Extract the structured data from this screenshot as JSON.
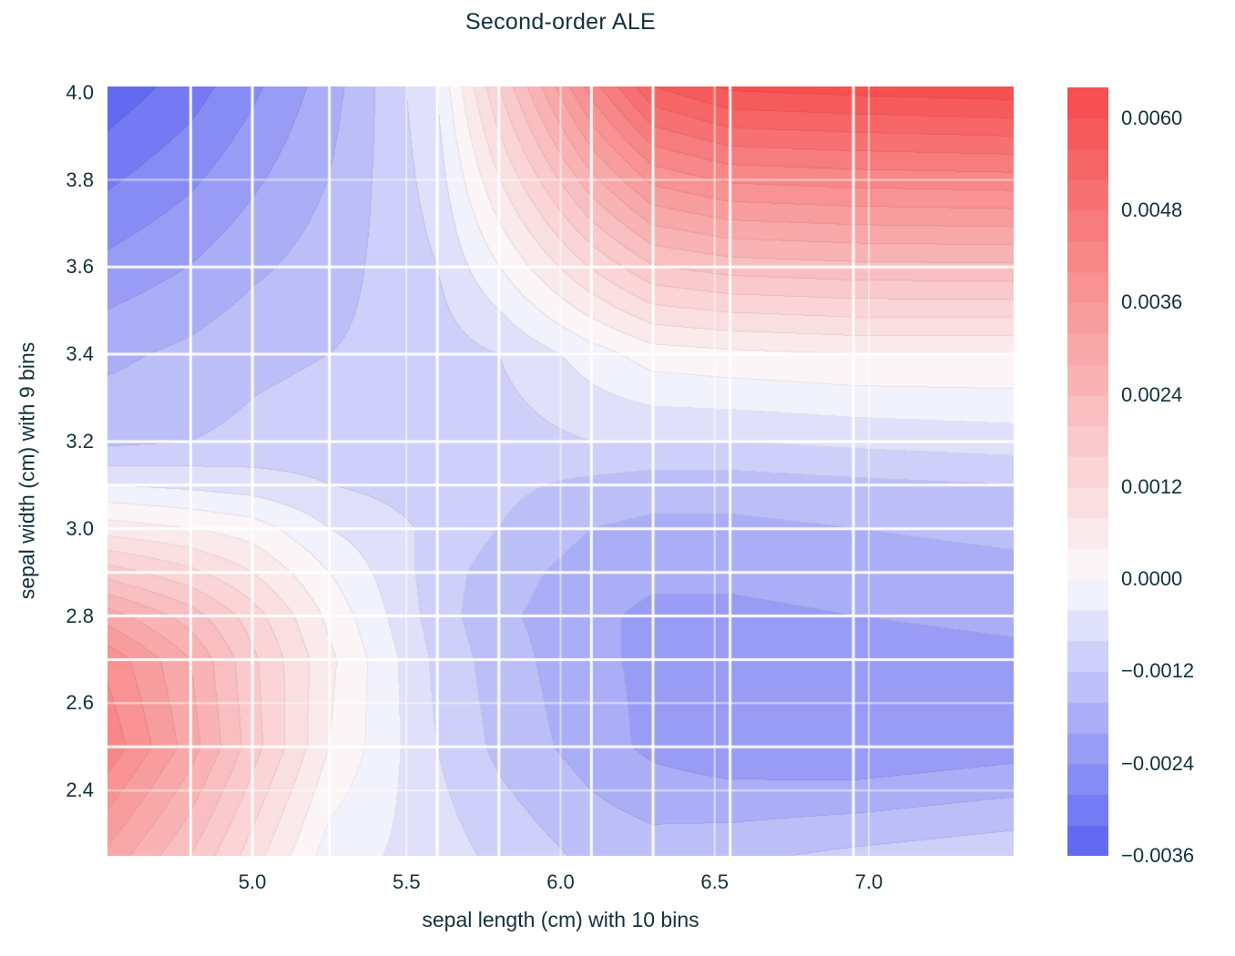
{
  "title": "Second-order ALE",
  "chart_data": {
    "type": "heatmap",
    "style": "filled-contour (second-order ALE surface, blue-white-red diverging colormap)",
    "title": "Second-order ALE",
    "xlabel": "sepal length (cm) with 10 bins",
    "ylabel": "sepal width (cm) with 9 bins",
    "xlim": [
      4.53,
      7.47
    ],
    "ylim": [
      2.25,
      4.014
    ],
    "x_ticks": {
      "labels": [
        "5.0",
        "5.5",
        "6.0",
        "6.5",
        "7.0"
      ],
      "values": [
        5.0,
        5.5,
        6.0,
        6.5,
        7.0
      ]
    },
    "y_ticks": {
      "labels": [
        "4.0",
        "3.8",
        "3.6",
        "3.4",
        "3.2",
        "3.0",
        "2.8",
        "2.6",
        "2.4"
      ],
      "values": [
        4.0,
        3.8,
        3.6,
        3.4,
        3.2,
        3.0,
        2.8,
        2.6,
        2.4
      ]
    },
    "levels": {
      "min": -0.0036,
      "max": 0.0064,
      "step": 0.0004
    },
    "colorbar": {
      "labels": [
        "0.0060",
        "0.0048",
        "0.0036",
        "0.0024",
        "0.0012",
        "0.0000",
        "−0.0012",
        "−0.0024",
        "−0.0036"
      ],
      "values": [
        0.006,
        0.0048,
        0.0036,
        0.0024,
        0.0012,
        0.0,
        -0.0012,
        -0.0024,
        -0.0036
      ]
    },
    "grid_x": [
      4.53,
      4.8,
      5.0,
      5.25,
      5.6,
      5.8,
      6.1,
      6.3,
      6.55,
      6.95,
      7.47
    ],
    "grid_y": [
      2.25,
      2.5,
      2.7,
      2.8,
      2.9,
      3.0,
      3.1,
      3.2,
      3.4,
      4.014
    ],
    "values": [
      [
        0.0031,
        0.002,
        0.001,
        -0.0002,
        -0.0006,
        -0.0009,
        -0.0013,
        -0.0014,
        -0.0013,
        -0.0011,
        -0.0009
      ],
      [
        0.0043,
        0.003,
        0.0018,
        0.0004,
        -0.0008,
        -0.0013,
        -0.0018,
        -0.0021,
        -0.0023,
        -0.0024,
        -0.0022
      ],
      [
        0.0039,
        0.0028,
        0.0017,
        0.0005,
        -0.0009,
        -0.0014,
        -0.0019,
        -0.0021,
        -0.0022,
        -0.0022,
        -0.0021
      ],
      [
        0.003,
        0.0022,
        0.0014,
        0.0003,
        -0.001,
        -0.0015,
        -0.0019,
        -0.0021,
        -0.0021,
        -0.002,
        -0.0019
      ],
      [
        0.0018,
        0.0013,
        0.0008,
        0.0,
        -0.001,
        -0.0014,
        -0.0018,
        -0.0019,
        -0.0019,
        -0.0018,
        -0.0017
      ],
      [
        0.0006,
        0.0004,
        0.0002,
        -0.0004,
        -0.0009,
        -0.0012,
        -0.0016,
        -0.0017,
        -0.0017,
        -0.0016,
        -0.0015
      ],
      [
        -0.0004,
        -0.0005,
        -0.0006,
        -0.0008,
        -0.001,
        -0.0011,
        -0.0013,
        -0.0014,
        -0.0014,
        -0.0013,
        -0.0012
      ],
      [
        -0.0013,
        -0.0012,
        -0.0011,
        -0.001,
        -0.001,
        -0.001,
        -0.0008,
        -0.0008,
        -0.0008,
        -0.0007,
        -0.0006
      ],
      [
        -0.0017,
        -0.0015,
        -0.0013,
        -0.0012,
        -0.001,
        -0.0008,
        -0.0002,
        0.0002,
        0.0003,
        0.0004,
        0.0004
      ],
      [
        -0.0035,
        -0.003,
        -0.0025,
        -0.0018,
        -0.0004,
        0.0016,
        0.0042,
        0.0056,
        0.0061,
        0.0062,
        0.0063
      ]
    ],
    "bin_edge_lines": {
      "x": [
        4.8,
        5.0,
        5.25,
        5.6,
        5.8,
        6.1,
        6.3,
        6.55,
        6.95
      ],
      "y": [
        2.5,
        2.7,
        2.8,
        2.9,
        3.0,
        3.1,
        3.2,
        3.4,
        3.6
      ]
    },
    "tick_grid_lines": {
      "x": [
        5.0,
        5.5,
        6.0,
        6.5,
        7.0
      ],
      "y": [
        2.4,
        2.6,
        2.8,
        3.0,
        3.2,
        3.8
      ]
    },
    "colors": {
      "positive_max": "#f64b4b",
      "zero": "#fbfafd",
      "negative_max": "#5a61f0",
      "text": "#14303c",
      "background": "#ffffff",
      "gridline": "#ffffff"
    }
  }
}
